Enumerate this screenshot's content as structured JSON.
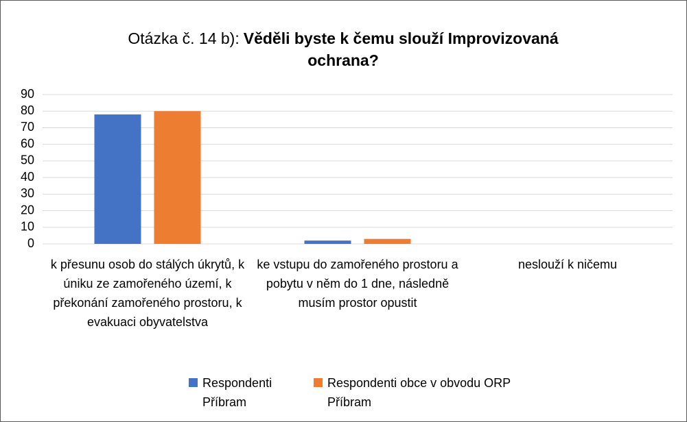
{
  "chart_data": {
    "type": "bar",
    "title": [
      "Otázka č. 14 b):",
      "Věděli byste k čemu slouží Improvizovaná ochrana?"
    ],
    "categories": [
      "k přesunu osob do stálých úkrytů, k úniku ze zamořeného území, k překonání zamořeného prostoru, k evakuaci obyvatelstva",
      "ke vstupu do zamořeného prostoru a pobytu v něm do 1 dne, následně musím prostor opustit",
      "neslouží k ničemu"
    ],
    "series": [
      {
        "name": "Respondenti Příbram",
        "color": "#4472c4",
        "values": [
          78,
          2,
          0
        ]
      },
      {
        "name": "Respondenti obce v obvodu ORP Příbram",
        "color": "#ed7d31",
        "values": [
          80,
          3,
          0
        ]
      }
    ],
    "ylim": [
      0,
      90
    ],
    "yticks": [
      0,
      10,
      20,
      30,
      40,
      50,
      60,
      70,
      80,
      90
    ],
    "grid": true,
    "legend": "bottom"
  }
}
